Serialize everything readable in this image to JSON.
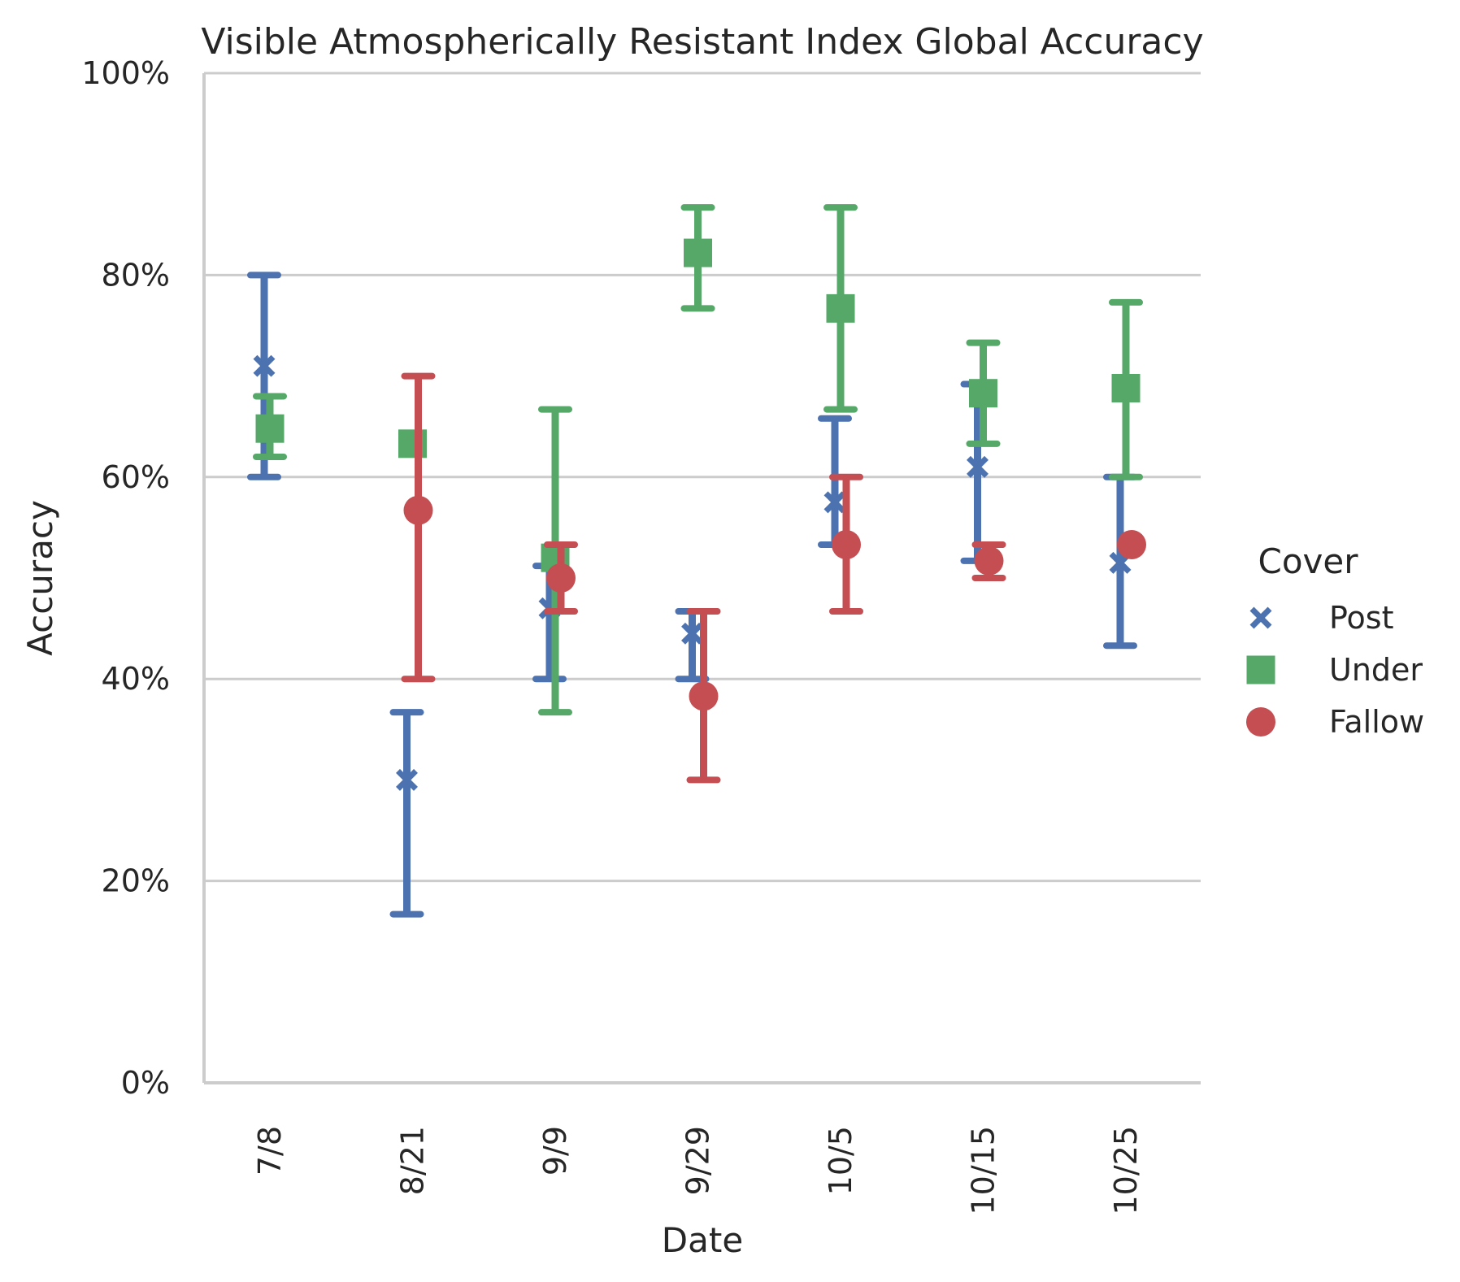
{
  "chart_data": {
    "type": "pointplot",
    "title": "Visible Atmospherically Resistant Index Global Accuracy",
    "xlabel": "Date",
    "ylabel": "Accuracy",
    "categories": [
      "7/8",
      "8/21",
      "9/9",
      "9/29",
      "10/5",
      "10/15",
      "10/25"
    ],
    "ylim": [
      0,
      100
    ],
    "yticks": [
      0,
      20,
      40,
      60,
      80,
      100
    ],
    "ytick_labels": [
      "0%",
      "20%",
      "40%",
      "60%",
      "80%",
      "100%"
    ],
    "grid": "horizontal",
    "legend": {
      "title": "Cover",
      "placement": "right"
    },
    "series": [
      {
        "name": "Post",
        "marker": "x",
        "color": "#4c72b0",
        "values": [
          71,
          30,
          47,
          44.5,
          57.5,
          61,
          51.5
        ],
        "ci_low": [
          60,
          16.7,
          40,
          40,
          53.3,
          51.7,
          43.3
        ],
        "ci_high": [
          80,
          36.7,
          51.2,
          46.7,
          65.8,
          69.2,
          60
        ]
      },
      {
        "name": "Under",
        "marker": "square",
        "color": "#55a868",
        "values": [
          64.8,
          63.3,
          52,
          82.2,
          76.7,
          68.3,
          68.8
        ],
        "ci_low": [
          62,
          null,
          36.7,
          76.7,
          66.7,
          63.3,
          60
        ],
        "ci_high": [
          68,
          null,
          66.7,
          86.7,
          86.7,
          73.3,
          77.3
        ]
      },
      {
        "name": "Fallow",
        "marker": "circle",
        "color": "#c44e52",
        "values": [
          null,
          56.7,
          50,
          38.3,
          53.3,
          51.7,
          53.3
        ],
        "ci_low": [
          null,
          40,
          46.7,
          30,
          46.7,
          50,
          null
        ],
        "ci_high": [
          null,
          70,
          53.3,
          46.7,
          60,
          53.3,
          null
        ]
      }
    ]
  }
}
